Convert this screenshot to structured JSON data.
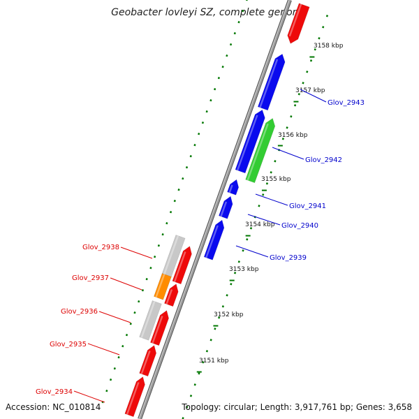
{
  "title": "Geobacter lovleyi SZ, complete genome",
  "accession": "Accession: NC_010814",
  "topology": "Topology: circular; Length: 3,917,761 bp; Genes: 3,658",
  "colors": {
    "backbone": "#808080",
    "tick": "#007700",
    "forward_label": "#0000cc",
    "reverse_label": "#dd0000",
    "blue": "#0a0aee",
    "red": "#ee0a0a",
    "green": "#33cc33",
    "gray": "#c8c8c8",
    "orange": "#ff8c00"
  },
  "kbp_labels": [
    {
      "text": "3158 kbp"
    },
    {
      "text": "3157 kbp"
    },
    {
      "text": "3156 kbp"
    },
    {
      "text": "3155 kbp"
    },
    {
      "text": "3154 kbp"
    },
    {
      "text": "3153 kbp"
    },
    {
      "text": "3152 kbp"
    },
    {
      "text": "3151 kbp"
    }
  ],
  "gene_labels": [
    {
      "text": "Glov_2943",
      "strand": "forward"
    },
    {
      "text": "Glov_2942",
      "strand": "forward"
    },
    {
      "text": "Glov_2941",
      "strand": "forward"
    },
    {
      "text": "Glov_2940",
      "strand": "forward"
    },
    {
      "text": "Glov_2939",
      "strand": "forward"
    },
    {
      "text": "Glov_2938",
      "strand": "reverse"
    },
    {
      "text": "Glov_2937",
      "strand": "reverse"
    },
    {
      "text": "Glov_2936",
      "strand": "reverse"
    },
    {
      "text": "Glov_2935",
      "strand": "reverse"
    },
    {
      "text": "Glov_2934",
      "strand": "reverse"
    }
  ]
}
